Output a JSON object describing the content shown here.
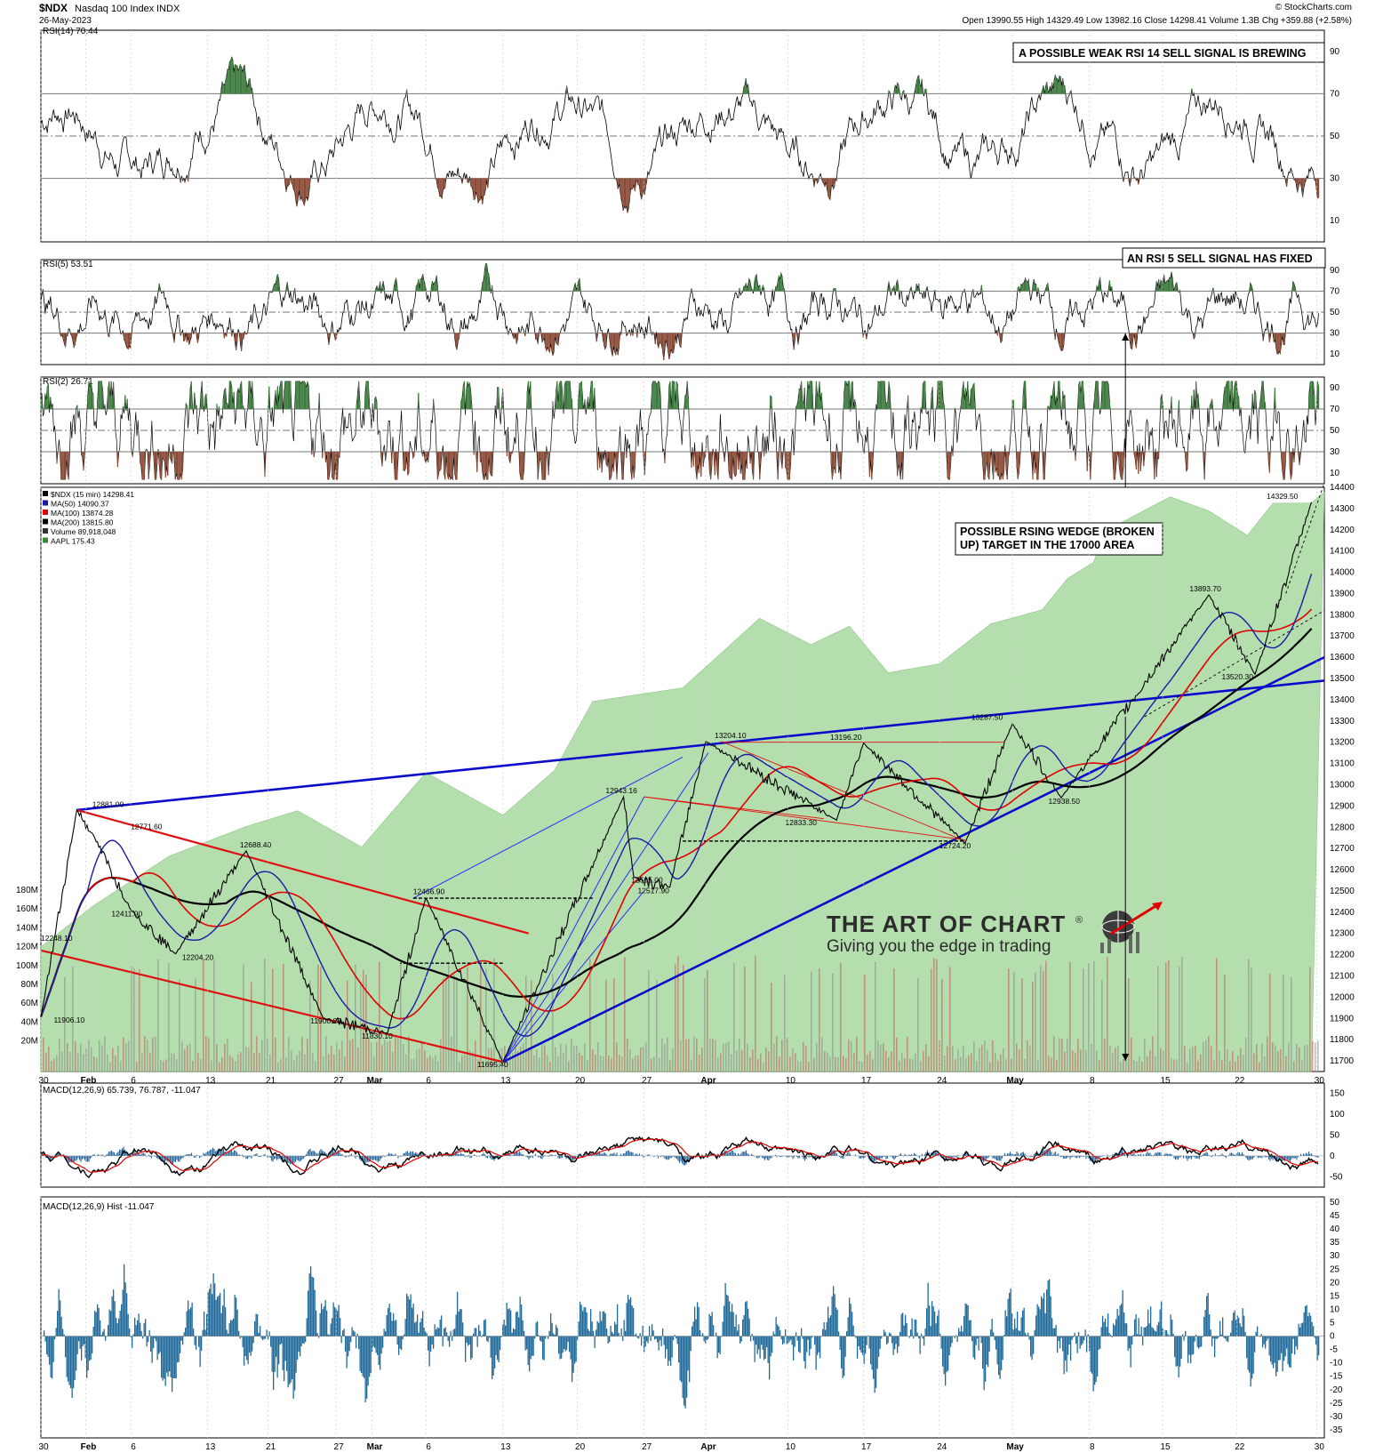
{
  "header": {
    "symbol": "$NDX",
    "name": "Nasdaq 100 Index",
    "exchange": "INDX",
    "date": "26-May-2023",
    "ohlc": "Open 13990.55  High 14329.49  Low 13982.16  Close 14298.41  Volume 1.3B  Chg +359.88 (+2.58%)",
    "copyright": "© StockCharts.com"
  },
  "date_axis": {
    "labels": [
      "30",
      "Feb",
      "6",
      "13",
      "21",
      "27",
      "Mar",
      "6",
      "13",
      "20",
      "27",
      "Apr",
      "10",
      "17",
      "24",
      "May",
      "8",
      "15",
      "22",
      "30"
    ],
    "bold": [
      "Feb",
      "Mar",
      "Apr",
      "May"
    ]
  },
  "panels": {
    "rsi14": {
      "label": "RSI(14) 70.44",
      "ticks": [
        "90",
        "70",
        "50",
        "30",
        "10"
      ],
      "callout": "A POSSIBLE WEAK RSI 14 SELL SIGNAL IS BREWING"
    },
    "rsi5": {
      "label": "RSI(5) 53.51",
      "ticks": [
        "90",
        "70",
        "50",
        "30",
        "10"
      ],
      "callout": "AN RSI 5 SELL SIGNAL HAS FIXED"
    },
    "rsi2": {
      "label": "RSI(2) 26.71",
      "ticks": [
        "90",
        "70",
        "50",
        "30",
        "10"
      ]
    },
    "price": {
      "legend": [
        {
          "text": "$NDX (15 min) 14298.41",
          "color": "#000000"
        },
        {
          "text": "MA(50) 14090.37",
          "color": "#1a1aa6"
        },
        {
          "text": "MA(100) 13874.28",
          "color": "#e00000"
        },
        {
          "text": "MA(200) 13815.80",
          "color": "#000000"
        },
        {
          "text": "Volume 89,918,048",
          "color": "#333333"
        },
        {
          "text": "AAPL 175.43",
          "color": "#3a8a3a"
        }
      ],
      "price_ticks": [
        "14400",
        "14300",
        "14200",
        "14100",
        "14000",
        "13900",
        "13800",
        "13700",
        "13600",
        "13500",
        "13400",
        "13300",
        "13200",
        "13100",
        "13000",
        "12900",
        "12800",
        "12700",
        "12600",
        "12500",
        "12400",
        "12300",
        "12200",
        "12100",
        "12000",
        "11900",
        "11800",
        "11700"
      ],
      "volume_ticks": [
        "180M",
        "160M",
        "140M",
        "120M",
        "100M",
        "80M",
        "60M",
        "40M",
        "20M"
      ],
      "callout_lines": [
        "POSSIBLE RSING WEDGE (BROKEN",
        "UP) TARGET IN THE 17000 AREA"
      ],
      "price_labels": [
        "12881.00",
        "12771.60",
        "12688.40",
        "12411.90",
        "12248.10",
        "12204.20",
        "11906.10",
        "11900.80",
        "11830.10",
        "12466.90",
        "11695.40",
        "12943.16",
        "12565.00",
        "12517.90",
        "13204.10",
        "13196.20",
        "12833.30",
        "12724.20",
        "13287.50",
        "12938.50",
        "13893.70",
        "13520.30",
        "14329.50"
      ],
      "watermark_title": "THE ART OF CHART",
      "watermark_reg": "®",
      "watermark_tagline": "Giving you the edge in trading"
    },
    "macd": {
      "label": "MACD(12,26,9) 65.739, 76.787, -11.047",
      "ticks": [
        "150",
        "100",
        "50",
        "0",
        "-50"
      ]
    },
    "hist": {
      "label": "MACD(12,26,9) Hist -11.047",
      "ticks": [
        "50",
        "45",
        "40",
        "35",
        "30",
        "25",
        "20",
        "15",
        "10",
        "5",
        "0",
        "-5",
        "-10",
        "-15",
        "-20",
        "-25",
        "-30",
        "-35"
      ]
    }
  },
  "chart_data": {
    "type": "line",
    "title": "$NDX Nasdaq 100 Index INDX",
    "interval": "15 min",
    "x_range": [
      "30 Jan 2023",
      "30 May 2023"
    ],
    "y_range": [
      11650,
      14400
    ],
    "close": 14298.41,
    "series": [
      {
        "name": "$NDX (15 min)",
        "points": [
          [
            "30 Jan",
            11906.1
          ],
          [
            "2 Feb",
            12881.0
          ],
          [
            "3 Feb",
            12771.6
          ],
          [
            "6 Feb",
            12411.9
          ],
          [
            "9 Feb",
            12204.2
          ],
          [
            "15 Feb",
            12688.4
          ],
          [
            "24 Feb",
            11900.8
          ],
          [
            "2 Mar",
            11830.1
          ],
          [
            "6 Mar",
            12466.9
          ],
          [
            "13 Mar",
            11695.4
          ],
          [
            "22 Mar",
            12943.16
          ],
          [
            "23 Mar",
            12565.0
          ],
          [
            "28 Mar",
            12517.9
          ],
          [
            "31 Mar",
            13204.1
          ],
          [
            "13 Apr",
            12833.3
          ],
          [
            "17 Apr",
            13196.2
          ],
          [
            "26 Apr",
            12724.2
          ],
          [
            "1 May",
            13287.5
          ],
          [
            "4 May",
            12938.5
          ],
          [
            "19 May",
            13893.7
          ],
          [
            "24 May",
            13520.3
          ],
          [
            "26 May",
            14329.5
          ]
        ]
      },
      {
        "name": "MA(50)",
        "last": 14090.37
      },
      {
        "name": "MA(100)",
        "last": 13874.28
      },
      {
        "name": "MA(200)",
        "last": 13815.8
      },
      {
        "name": "AAPL",
        "last": 175.43
      }
    ],
    "indicators": {
      "RSI(14)": 70.44,
      "RSI(5)": 53.51,
      "RSI(2)": 26.71,
      "MACD": 65.739,
      "Signal": 76.787,
      "Hist": -11.047
    }
  }
}
